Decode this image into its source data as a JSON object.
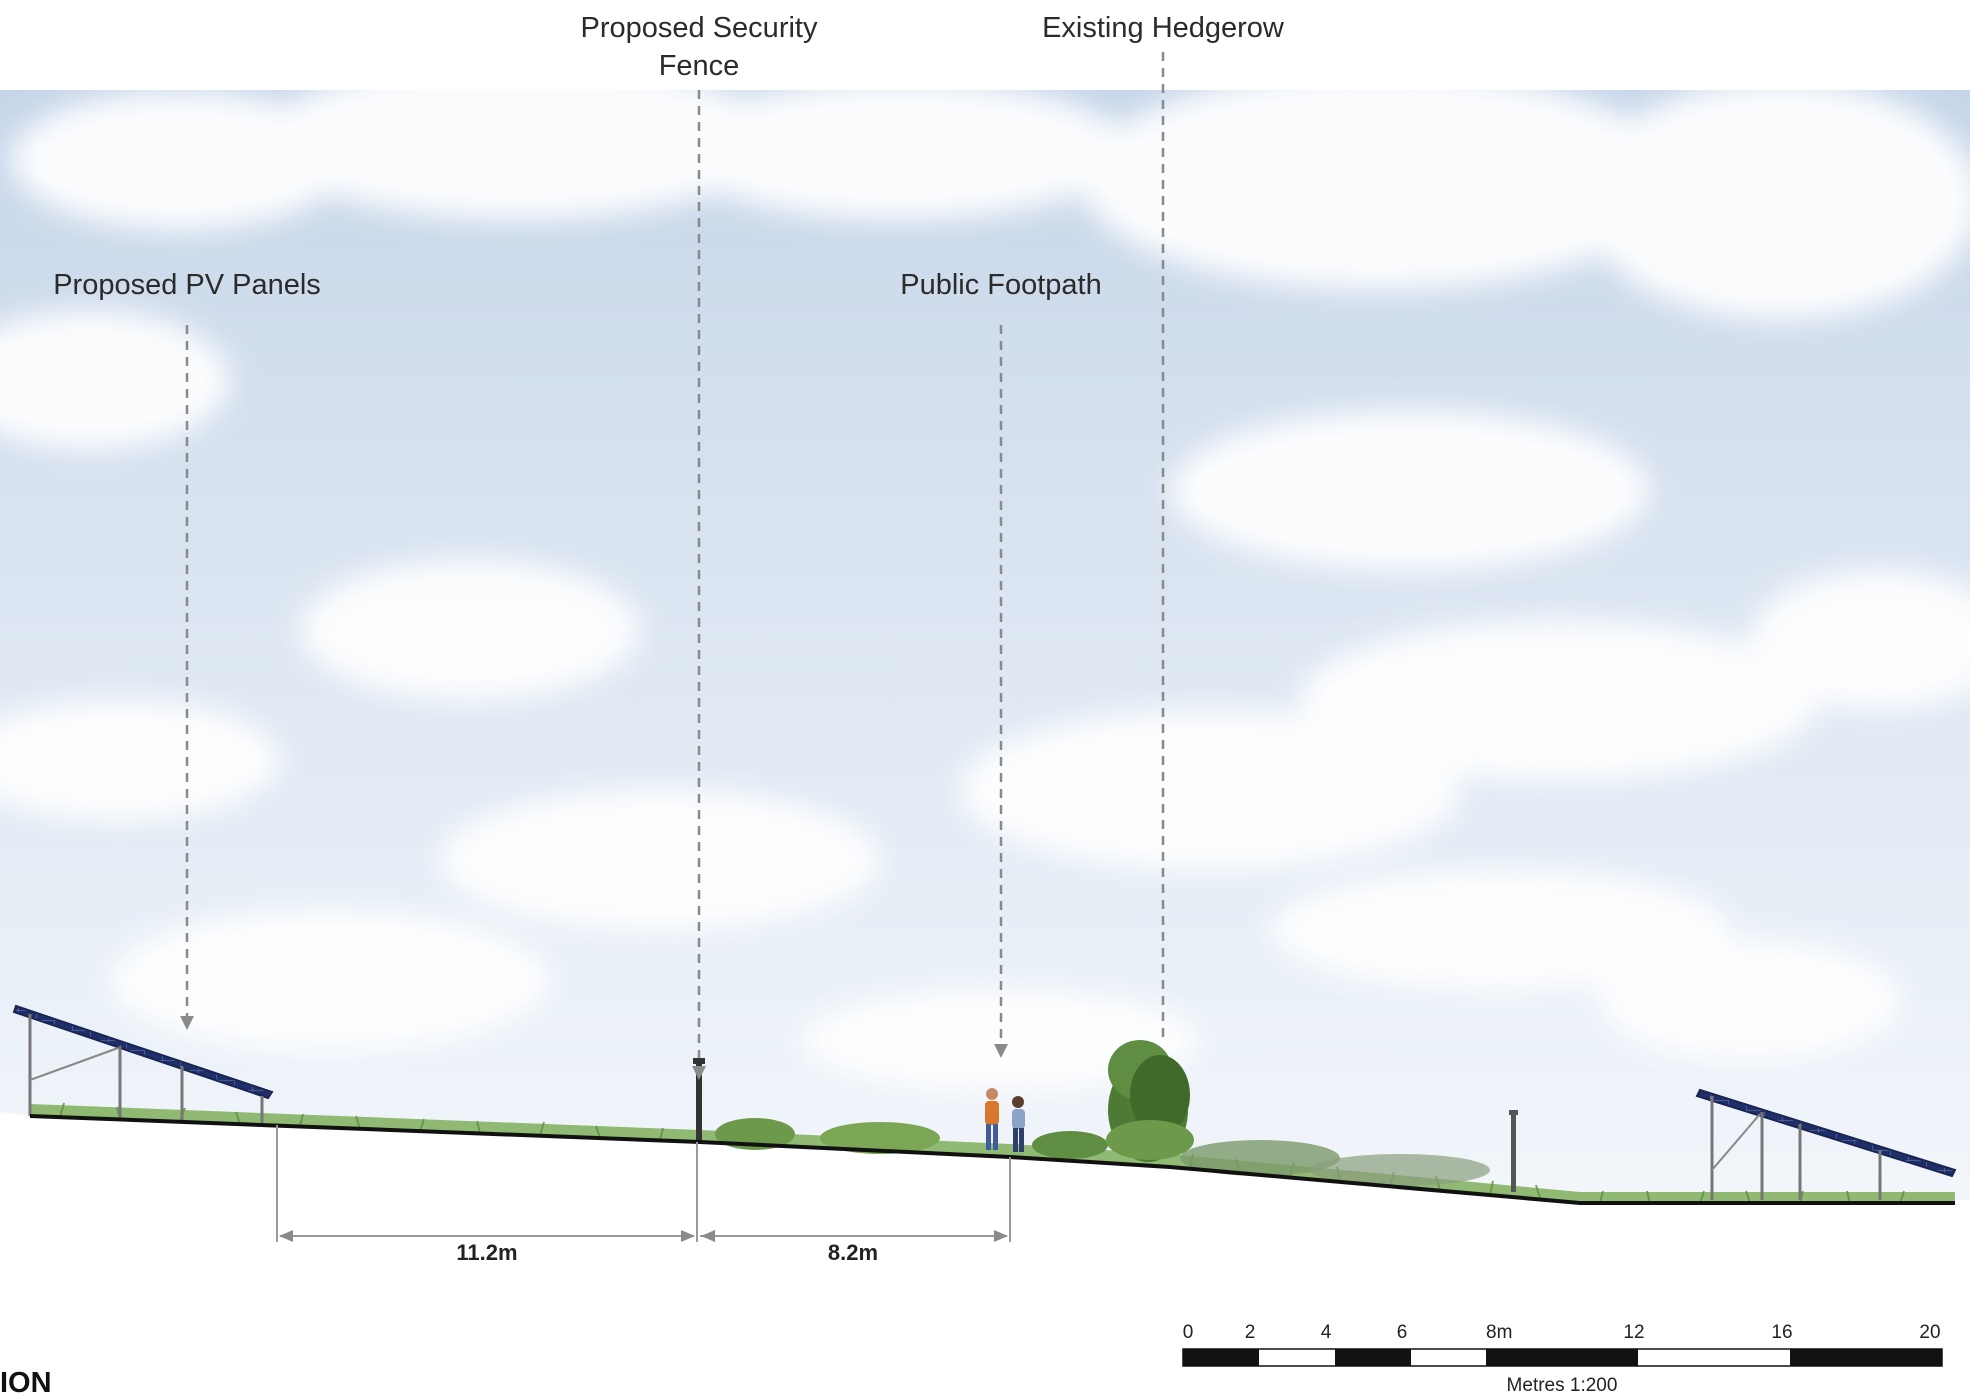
{
  "callouts": {
    "pv_panels": "Proposed PV Panels",
    "security_fence_line1": "Proposed Security",
    "security_fence_line2": "Fence",
    "public_footpath": "Public Footpath",
    "existing_hedgerow": "Existing Hedgerow"
  },
  "dimensions": {
    "left_span": "11.2m",
    "right_span": "8.2m"
  },
  "scale_bar": {
    "ticks": [
      "0",
      "2",
      "4",
      "6",
      "8m",
      "12",
      "16",
      "20"
    ],
    "caption": "Metres 1:200"
  },
  "corner_label": "ION",
  "colors": {
    "sky_top": "#c9d8ea",
    "sky_bottom": "#eef3f9",
    "panel_blue": "#1f2f6b",
    "grass": "#6c9a4a",
    "hedge": "#4f7a35",
    "leader": "#8a8a8a"
  }
}
